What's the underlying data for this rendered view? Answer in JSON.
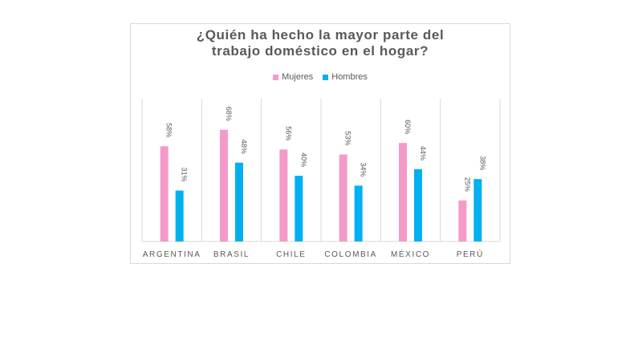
{
  "chart_data": {
    "type": "bar",
    "title_lines": [
      "¿Quién ha hecho la mayor parte del",
      "trabajo doméstico en el hogar?"
    ],
    "categories": [
      "ARGENTINA",
      "BRASIL",
      "CHILE",
      "COLOMBIA",
      "MÉXICO",
      "PERÚ"
    ],
    "series": [
      {
        "name": "Mujeres",
        "color": "#f49ac9",
        "values": [
          58,
          68,
          56,
          53,
          60,
          25
        ],
        "labels": [
          "58%",
          "68%",
          "56%",
          "53%",
          "60%",
          "25%"
        ]
      },
      {
        "name": "Hombres",
        "color": "#00b0f0",
        "values": [
          31,
          48,
          40,
          34,
          44,
          38
        ],
        "labels": [
          "31%",
          "48%",
          "40%",
          "34%",
          "44%",
          "38%"
        ]
      }
    ],
    "ylim": [
      0,
      80
    ],
    "grid": "vertical separators",
    "legend_position": "top"
  }
}
